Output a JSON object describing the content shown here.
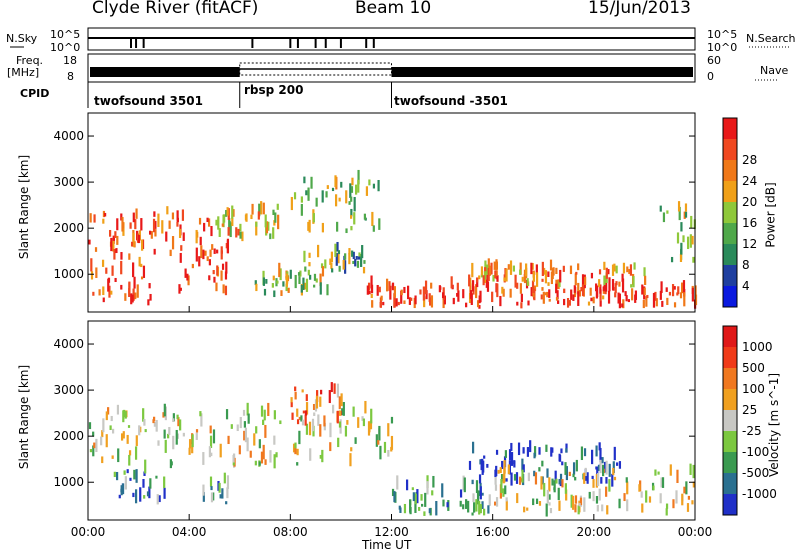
{
  "header": {
    "station": "Clyde River (fitACF)",
    "beam": "Beam 10",
    "date": "15/Jun/2013"
  },
  "strip_labels": {
    "nsky": "N.Sky",
    "nsky_hi": "10^5",
    "nsky_lo": "10^0",
    "nsearch": "N.Search",
    "nsearch_hi": "10^5",
    "nsearch_lo": "10^0",
    "freq_top": "Freq.",
    "freq_unit": "[MHz]",
    "freq_hi": "18",
    "freq_lo": "8",
    "nave": "Nave",
    "nave_hi": "60",
    "nave_lo": "0",
    "cpid": "CPID"
  },
  "cpid_segments": [
    {
      "label": "twofsound 3501",
      "start_hour": 0
    },
    {
      "label": "rbsp 200",
      "start_hour": 6
    },
    {
      "label": "twofsound -3501",
      "start_hour": 12
    }
  ],
  "colors": {
    "power": [
      "#0a1adf",
      "#1f3fa0",
      "#2a8a5a",
      "#4fa84a",
      "#8fc83a",
      "#f0a018",
      "#f07818",
      "#f04820",
      "#e81818"
    ],
    "velocity": [
      "#2030c8",
      "#2a7090",
      "#3a9a50",
      "#7cc840",
      "#c8c8c4",
      "#f0a020",
      "#f07820",
      "#f03a18",
      "#e01818"
    ]
  },
  "chart_data": [
    {
      "type": "heatmap",
      "title": "Power",
      "xlabel": "Time UT",
      "ylabel": "Slant Range [km]",
      "xlim_hours": [
        0,
        24
      ],
      "ylim_km": [
        180,
        4500
      ],
      "x_ticks": [
        "00:00",
        "04:00",
        "08:00",
        "12:00",
        "16:00",
        "20:00",
        "00:00"
      ],
      "y_ticks": [
        1000,
        2000,
        3000,
        4000
      ],
      "colorbar": {
        "label": "Power [dB]",
        "ticks": [
          4,
          8,
          12,
          16,
          20,
          24,
          28
        ]
      },
      "echo_regions": [
        {
          "t0": 0.0,
          "t1": 5.5,
          "r0": 1300,
          "r1": 2300,
          "level": 0.85
        },
        {
          "t0": 0.0,
          "t1": 2.5,
          "r0": 300,
          "r1": 1200,
          "level": 0.8
        },
        {
          "t0": 3.5,
          "t1": 5.5,
          "r0": 500,
          "r1": 1500,
          "level": 0.9
        },
        {
          "t0": 5.0,
          "t1": 8.0,
          "r0": 1700,
          "r1": 2400,
          "level": 0.6
        },
        {
          "t0": 8.0,
          "t1": 11.5,
          "r0": 1800,
          "r1": 3000,
          "level": 0.45
        },
        {
          "t0": 8.5,
          "t1": 11.0,
          "r0": 1000,
          "r1": 1500,
          "level": 0.4
        },
        {
          "t0": 6.5,
          "t1": 9.5,
          "r0": 500,
          "r1": 1000,
          "level": 0.5
        },
        {
          "t0": 11.0,
          "t1": 24.0,
          "r0": 250,
          "r1": 700,
          "level": 0.9
        },
        {
          "t0": 15.0,
          "t1": 22.0,
          "r0": 700,
          "r1": 1100,
          "level": 0.7
        },
        {
          "t0": 22.5,
          "t1": 24.0,
          "r0": 1200,
          "r1": 2500,
          "level": 0.45
        }
      ]
    },
    {
      "type": "heatmap",
      "title": "Velocity",
      "xlabel": "Time UT",
      "ylabel": "Slant Range [km]",
      "xlim_hours": [
        0,
        24
      ],
      "ylim_km": [
        180,
        4500
      ],
      "x_ticks": [
        "00:00",
        "04:00",
        "08:00",
        "12:00",
        "16:00",
        "20:00",
        "00:00"
      ],
      "y_ticks": [
        1000,
        2000,
        3000,
        4000
      ],
      "colorbar": {
        "label": "Velocity [m s^-1]",
        "ticks": [
          "1000",
          "500",
          "100",
          "25",
          "-25",
          "-100",
          "-500",
          "-1000"
        ]
      },
      "echo_regions": [
        {
          "t0": 0.0,
          "t1": 12.0,
          "r0": 1300,
          "r1": 2500,
          "level": 0.5
        },
        {
          "t0": 1.0,
          "t1": 3.0,
          "r0": 500,
          "r1": 1200,
          "level": 0.25
        },
        {
          "t0": 4.5,
          "t1": 5.5,
          "r0": 500,
          "r1": 1000,
          "level": 0.3
        },
        {
          "t0": 8.0,
          "t1": 10.0,
          "r0": 2200,
          "r1": 3000,
          "level": 0.72
        },
        {
          "t0": 12.0,
          "t1": 16.0,
          "r0": 250,
          "r1": 900,
          "level": 0.3
        },
        {
          "t0": 15.0,
          "t1": 21.0,
          "r0": 900,
          "r1": 1700,
          "level": 0.05
        },
        {
          "t0": 16.0,
          "t1": 24.0,
          "r0": 250,
          "r1": 1200,
          "level": 0.5
        }
      ]
    }
  ]
}
